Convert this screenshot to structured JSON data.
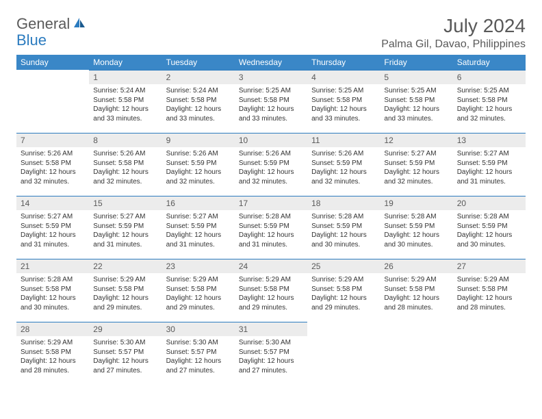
{
  "brand": {
    "part1": "General",
    "part2": "Blue"
  },
  "title": "July 2024",
  "location": "Palma Gil, Davao, Philippines",
  "colors": {
    "header_bg": "#3a87c7",
    "accent": "#2b7bbf",
    "daynum_bg": "#ececec",
    "text_muted": "#595959"
  },
  "weekdays": [
    "Sunday",
    "Monday",
    "Tuesday",
    "Wednesday",
    "Thursday",
    "Friday",
    "Saturday"
  ],
  "weeks": [
    [
      {
        "day": "",
        "sunrise": "",
        "sunset": "",
        "daylight": ""
      },
      {
        "day": "1",
        "sunrise": "Sunrise: 5:24 AM",
        "sunset": "Sunset: 5:58 PM",
        "daylight": "Daylight: 12 hours and 33 minutes."
      },
      {
        "day": "2",
        "sunrise": "Sunrise: 5:24 AM",
        "sunset": "Sunset: 5:58 PM",
        "daylight": "Daylight: 12 hours and 33 minutes."
      },
      {
        "day": "3",
        "sunrise": "Sunrise: 5:25 AM",
        "sunset": "Sunset: 5:58 PM",
        "daylight": "Daylight: 12 hours and 33 minutes."
      },
      {
        "day": "4",
        "sunrise": "Sunrise: 5:25 AM",
        "sunset": "Sunset: 5:58 PM",
        "daylight": "Daylight: 12 hours and 33 minutes."
      },
      {
        "day": "5",
        "sunrise": "Sunrise: 5:25 AM",
        "sunset": "Sunset: 5:58 PM",
        "daylight": "Daylight: 12 hours and 33 minutes."
      },
      {
        "day": "6",
        "sunrise": "Sunrise: 5:25 AM",
        "sunset": "Sunset: 5:58 PM",
        "daylight": "Daylight: 12 hours and 32 minutes."
      }
    ],
    [
      {
        "day": "7",
        "sunrise": "Sunrise: 5:26 AM",
        "sunset": "Sunset: 5:58 PM",
        "daylight": "Daylight: 12 hours and 32 minutes."
      },
      {
        "day": "8",
        "sunrise": "Sunrise: 5:26 AM",
        "sunset": "Sunset: 5:58 PM",
        "daylight": "Daylight: 12 hours and 32 minutes."
      },
      {
        "day": "9",
        "sunrise": "Sunrise: 5:26 AM",
        "sunset": "Sunset: 5:59 PM",
        "daylight": "Daylight: 12 hours and 32 minutes."
      },
      {
        "day": "10",
        "sunrise": "Sunrise: 5:26 AM",
        "sunset": "Sunset: 5:59 PM",
        "daylight": "Daylight: 12 hours and 32 minutes."
      },
      {
        "day": "11",
        "sunrise": "Sunrise: 5:26 AM",
        "sunset": "Sunset: 5:59 PM",
        "daylight": "Daylight: 12 hours and 32 minutes."
      },
      {
        "day": "12",
        "sunrise": "Sunrise: 5:27 AM",
        "sunset": "Sunset: 5:59 PM",
        "daylight": "Daylight: 12 hours and 32 minutes."
      },
      {
        "day": "13",
        "sunrise": "Sunrise: 5:27 AM",
        "sunset": "Sunset: 5:59 PM",
        "daylight": "Daylight: 12 hours and 31 minutes."
      }
    ],
    [
      {
        "day": "14",
        "sunrise": "Sunrise: 5:27 AM",
        "sunset": "Sunset: 5:59 PM",
        "daylight": "Daylight: 12 hours and 31 minutes."
      },
      {
        "day": "15",
        "sunrise": "Sunrise: 5:27 AM",
        "sunset": "Sunset: 5:59 PM",
        "daylight": "Daylight: 12 hours and 31 minutes."
      },
      {
        "day": "16",
        "sunrise": "Sunrise: 5:27 AM",
        "sunset": "Sunset: 5:59 PM",
        "daylight": "Daylight: 12 hours and 31 minutes."
      },
      {
        "day": "17",
        "sunrise": "Sunrise: 5:28 AM",
        "sunset": "Sunset: 5:59 PM",
        "daylight": "Daylight: 12 hours and 31 minutes."
      },
      {
        "day": "18",
        "sunrise": "Sunrise: 5:28 AM",
        "sunset": "Sunset: 5:59 PM",
        "daylight": "Daylight: 12 hours and 30 minutes."
      },
      {
        "day": "19",
        "sunrise": "Sunrise: 5:28 AM",
        "sunset": "Sunset: 5:59 PM",
        "daylight": "Daylight: 12 hours and 30 minutes."
      },
      {
        "day": "20",
        "sunrise": "Sunrise: 5:28 AM",
        "sunset": "Sunset: 5:59 PM",
        "daylight": "Daylight: 12 hours and 30 minutes."
      }
    ],
    [
      {
        "day": "21",
        "sunrise": "Sunrise: 5:28 AM",
        "sunset": "Sunset: 5:58 PM",
        "daylight": "Daylight: 12 hours and 30 minutes."
      },
      {
        "day": "22",
        "sunrise": "Sunrise: 5:29 AM",
        "sunset": "Sunset: 5:58 PM",
        "daylight": "Daylight: 12 hours and 29 minutes."
      },
      {
        "day": "23",
        "sunrise": "Sunrise: 5:29 AM",
        "sunset": "Sunset: 5:58 PM",
        "daylight": "Daylight: 12 hours and 29 minutes."
      },
      {
        "day": "24",
        "sunrise": "Sunrise: 5:29 AM",
        "sunset": "Sunset: 5:58 PM",
        "daylight": "Daylight: 12 hours and 29 minutes."
      },
      {
        "day": "25",
        "sunrise": "Sunrise: 5:29 AM",
        "sunset": "Sunset: 5:58 PM",
        "daylight": "Daylight: 12 hours and 29 minutes."
      },
      {
        "day": "26",
        "sunrise": "Sunrise: 5:29 AM",
        "sunset": "Sunset: 5:58 PM",
        "daylight": "Daylight: 12 hours and 28 minutes."
      },
      {
        "day": "27",
        "sunrise": "Sunrise: 5:29 AM",
        "sunset": "Sunset: 5:58 PM",
        "daylight": "Daylight: 12 hours and 28 minutes."
      }
    ],
    [
      {
        "day": "28",
        "sunrise": "Sunrise: 5:29 AM",
        "sunset": "Sunset: 5:58 PM",
        "daylight": "Daylight: 12 hours and 28 minutes."
      },
      {
        "day": "29",
        "sunrise": "Sunrise: 5:30 AM",
        "sunset": "Sunset: 5:57 PM",
        "daylight": "Daylight: 12 hours and 27 minutes."
      },
      {
        "day": "30",
        "sunrise": "Sunrise: 5:30 AM",
        "sunset": "Sunset: 5:57 PM",
        "daylight": "Daylight: 12 hours and 27 minutes."
      },
      {
        "day": "31",
        "sunrise": "Sunrise: 5:30 AM",
        "sunset": "Sunset: 5:57 PM",
        "daylight": "Daylight: 12 hours and 27 minutes."
      },
      {
        "day": "",
        "sunrise": "",
        "sunset": "",
        "daylight": ""
      },
      {
        "day": "",
        "sunrise": "",
        "sunset": "",
        "daylight": ""
      },
      {
        "day": "",
        "sunrise": "",
        "sunset": "",
        "daylight": ""
      }
    ]
  ]
}
